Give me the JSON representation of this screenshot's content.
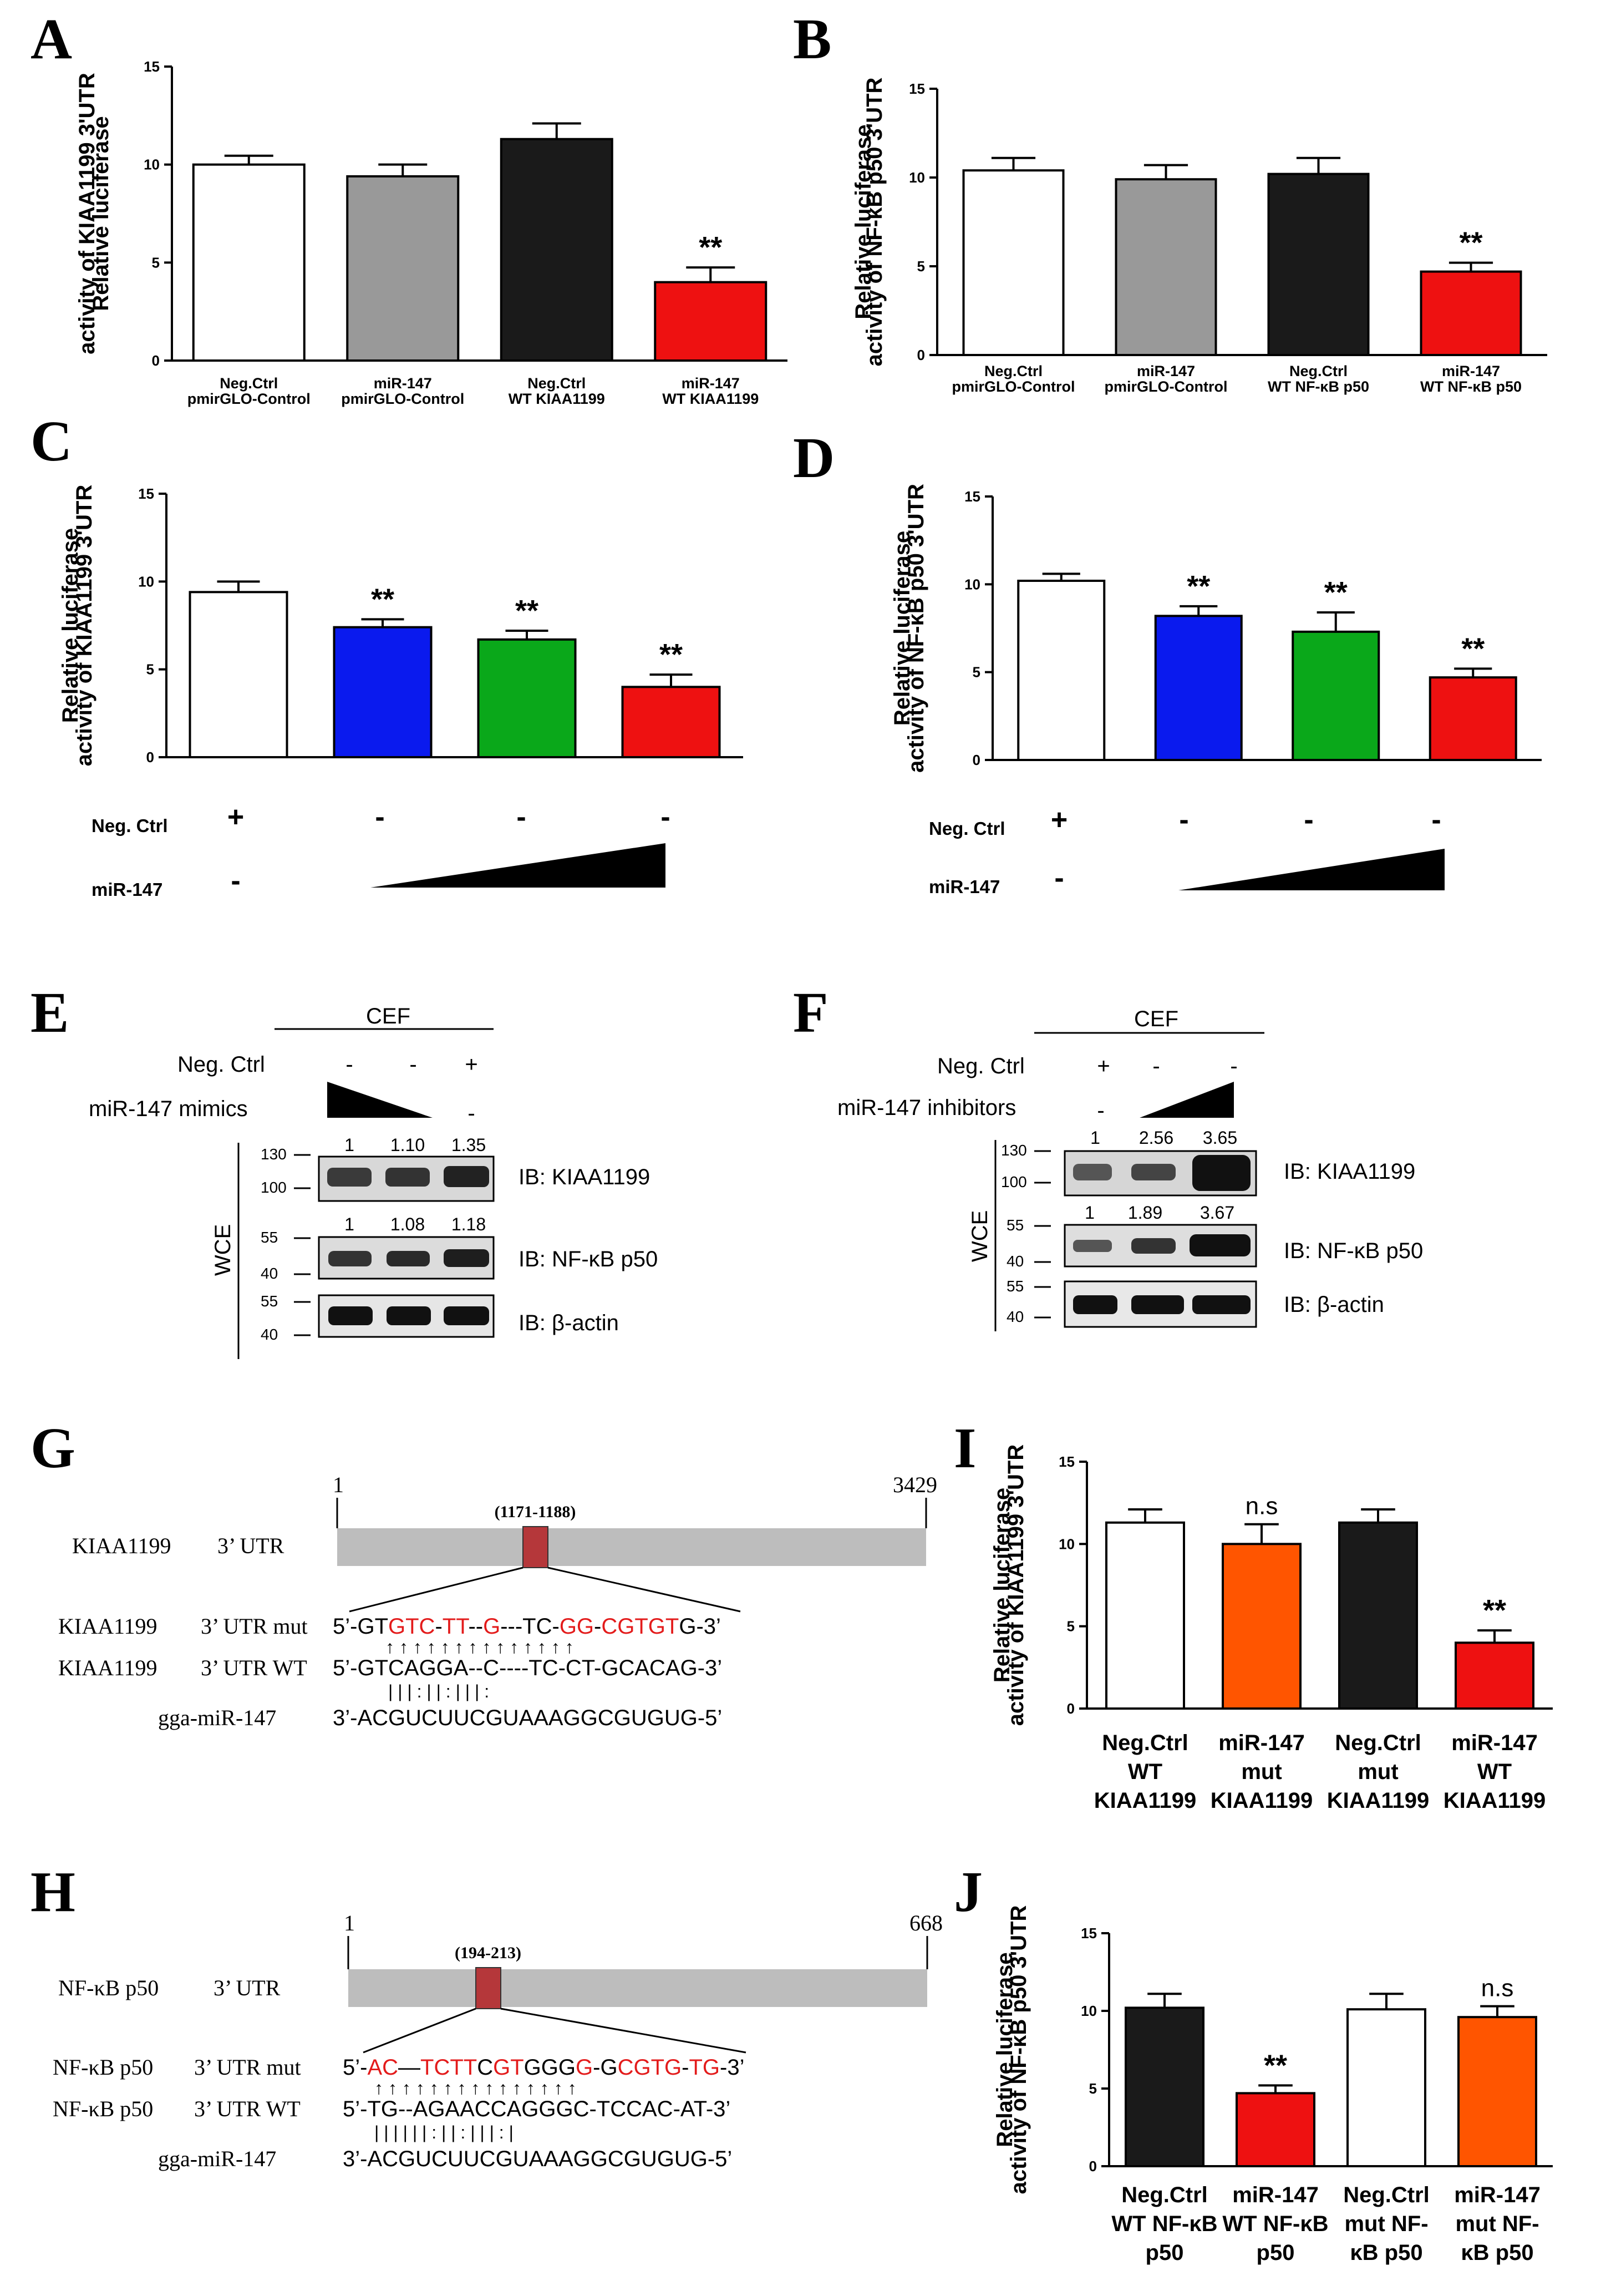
{
  "panel_letters": [
    "A",
    "B",
    "C",
    "D",
    "E",
    "F",
    "G",
    "H",
    "I",
    "J"
  ],
  "sig_label": "**",
  "ns_label": "n.s",
  "axis_ticks": [
    "0",
    "5",
    "10",
    "15"
  ],
  "chart_data": [
    {
      "id": "A",
      "type": "bar",
      "ylabel": [
        "Relative luciferase",
        "activity of KIAA1199  3'UTR"
      ],
      "ylim": [
        0,
        15
      ],
      "categories": [
        [
          "Neg.Ctrl",
          "pmirGLO-Control"
        ],
        [
          "miR-147",
          "pmirGLO-Control"
        ],
        [
          "Neg.Ctrl",
          "WT KIAA1199"
        ],
        [
          "miR-147",
          "WT KIAA1199"
        ]
      ],
      "values": [
        10.0,
        9.4,
        11.3,
        4.0
      ],
      "errors": [
        0.45,
        0.6,
        0.8,
        0.75
      ],
      "colors": [
        "#ffffff",
        "#999999",
        "#1a1a1a",
        "#ee1111"
      ],
      "significance": [
        "",
        "",
        "",
        "**"
      ]
    },
    {
      "id": "B",
      "type": "bar",
      "ylabel": [
        "Relative luciferase",
        "activity of NF-κB p50  3'UTR"
      ],
      "ylim": [
        0,
        15
      ],
      "categories": [
        [
          "Neg.Ctrl",
          "pmirGLO-Control"
        ],
        [
          "miR-147",
          "pmirGLO-Control"
        ],
        [
          "Neg.Ctrl",
          "WT NF-κB p50"
        ],
        [
          "miR-147",
          "WT NF-κB p50"
        ]
      ],
      "values": [
        10.4,
        9.9,
        10.2,
        4.7
      ],
      "errors": [
        0.7,
        0.8,
        0.9,
        0.5
      ],
      "colors": [
        "#ffffff",
        "#999999",
        "#1a1a1a",
        "#ee1111"
      ],
      "significance": [
        "",
        "",
        "",
        "**"
      ]
    },
    {
      "id": "C",
      "type": "bar",
      "ylabel": [
        "Relative luciferase",
        "activity of KIAA1199  3'UTR"
      ],
      "ylim": [
        0,
        15
      ],
      "categories": [
        [],
        [],
        [],
        []
      ],
      "values": [
        9.4,
        7.4,
        6.7,
        4.0
      ],
      "errors": [
        0.6,
        0.45,
        0.5,
        0.7
      ],
      "colors": [
        "#ffffff",
        "#0a1aee",
        "#0aa81a",
        "#ee1111"
      ],
      "significance": [
        "",
        "**",
        "**",
        "**"
      ],
      "conditions": {
        "neg_label": "Neg. Ctrl",
        "mir_label": "miR-147",
        "neg": [
          "+",
          "-",
          "-",
          "-"
        ],
        "mir_first": "-"
      }
    },
    {
      "id": "D",
      "type": "bar",
      "ylabel": [
        "Relative luciferase",
        "activity of NF-κB p50  3'UTR"
      ],
      "ylim": [
        0,
        15
      ],
      "categories": [
        [],
        [],
        [],
        []
      ],
      "values": [
        10.2,
        8.2,
        7.3,
        4.7
      ],
      "errors": [
        0.4,
        0.55,
        1.1,
        0.5
      ],
      "colors": [
        "#ffffff",
        "#0a1aee",
        "#0aa81a",
        "#ee1111"
      ],
      "significance": [
        "",
        "**",
        "**",
        "**"
      ],
      "conditions": {
        "neg_label": "Neg. Ctrl",
        "mir_label": "miR-147",
        "neg": [
          "+",
          "-",
          "-",
          "-"
        ],
        "mir_first": "-"
      }
    },
    {
      "id": "I",
      "type": "bar",
      "ylabel": [
        "Relative luciferase",
        "activity of KIAA1199  3'UTR"
      ],
      "ylim": [
        0,
        15
      ],
      "categories": [
        [
          "Neg.Ctrl",
          "WT",
          "KIAA1199"
        ],
        [
          "miR-147",
          "mut",
          "KIAA1199"
        ],
        [
          "Neg.Ctrl",
          "mut",
          "KIAA1199"
        ],
        [
          "miR-147",
          "WT",
          "KIAA1199"
        ]
      ],
      "values": [
        11.3,
        10.0,
        11.3,
        4.0
      ],
      "errors": [
        0.8,
        1.2,
        0.8,
        0.75
      ],
      "colors": [
        "#ffffff",
        "#ff5500",
        "#1a1a1a",
        "#ee1111"
      ],
      "significance": [
        "",
        "n.s",
        "",
        "**"
      ]
    },
    {
      "id": "J",
      "type": "bar",
      "ylabel": [
        "Relative luciferase",
        "activity of NF-κB p50  3'UTR"
      ],
      "ylim": [
        0,
        15
      ],
      "categories": [
        [
          "Neg.Ctrl",
          "WT NF-κB",
          "p50"
        ],
        [
          "miR-147",
          "WT NF-κB",
          "p50"
        ],
        [
          "Neg.Ctrl",
          "mut NF-",
          "κB p50"
        ],
        [
          "miR-147",
          "mut NF-",
          "κB p50"
        ]
      ],
      "values": [
        10.2,
        4.7,
        10.1,
        9.6
      ],
      "errors": [
        0.9,
        0.5,
        1.0,
        0.7
      ],
      "colors": [
        "#1a1a1a",
        "#ee1111",
        "#ffffff",
        "#ff5500"
      ],
      "significance": [
        "",
        "**",
        "",
        "n.s"
      ]
    }
  ],
  "panel_E": {
    "cell": "CEF",
    "neg_label": "Neg. Ctrl",
    "neg_signs": [
      "-",
      "-",
      "+"
    ],
    "treat_label": "miR-147 mimics",
    "treat_last_sign": "-",
    "lysate": "WCE",
    "blots": [
      {
        "label": "IB: KIAA1199",
        "quant": [
          "1",
          "1.10",
          "1.35"
        ],
        "markers": [
          "130",
          "100"
        ]
      },
      {
        "label": "IB: NF-κB p50",
        "quant": [
          "1",
          "1.08",
          "1.18"
        ],
        "markers": [
          "55",
          "40"
        ]
      },
      {
        "label": "IB: β-actin",
        "quant": [],
        "markers": [
          "55",
          "40"
        ]
      }
    ]
  },
  "panel_F": {
    "cell": "CEF",
    "neg_label": "Neg. Ctrl",
    "neg_signs": [
      "+",
      "-",
      "-"
    ],
    "treat_label": "miR-147 inhibitors",
    "treat_first_sign": "-",
    "lysate": "WCE",
    "blots": [
      {
        "label": "IB: KIAA1199",
        "quant": [
          "1",
          "2.56",
          "3.65"
        ],
        "markers": [
          "130",
          "100"
        ]
      },
      {
        "label": "IB: NF-κB p50",
        "quant": [
          "1",
          "1.89",
          "3.67"
        ],
        "markers": [
          "55",
          "40"
        ]
      },
      {
        "label": "IB: β-actin",
        "quant": [],
        "markers": [
          "55",
          "40"
        ]
      }
    ]
  },
  "panel_G": {
    "gene": "KIAA1199",
    "utr": "3’ UTR",
    "start": "1",
    "end": "3429",
    "site": "(1171-1188)",
    "mut_label": "3’ UTR mut",
    "wt_label": "3’ UTR WT",
    "mirna_label": "gga-miR-147",
    "mut_seq": [
      [
        "5’-GT",
        0
      ],
      [
        "GTC",
        1
      ],
      [
        "-",
        0
      ],
      [
        "TT",
        1
      ],
      [
        "--",
        0
      ],
      [
        "G",
        1
      ],
      [
        "---TC-",
        0
      ],
      [
        "GG",
        1
      ],
      [
        "-",
        0
      ],
      [
        "CGTGT",
        1
      ],
      [
        "G-3’",
        0
      ]
    ],
    "wt_seq": "5’-GTCAGGA--C----TC-CT-GCACAG-3’",
    "pairing": "|  |  |  :  |       |  :  | |  |  :",
    "mirna_seq": "3’-ACGUCUUCGUAAAGGCGUGUG-5’"
  },
  "panel_H": {
    "gene": "NF-κB p50",
    "utr": "3’ UTR",
    "start": "1",
    "end": "668",
    "site": "(194-213)",
    "mut_label": "3’ UTR mut",
    "wt_label": "3’ UTR WT",
    "mirna_label": "gga-miR-147",
    "mut_seq": [
      [
        "5’-",
        0
      ],
      [
        "AC",
        1
      ],
      [
        "—",
        0
      ],
      [
        "TCTT",
        1
      ],
      [
        "C",
        0
      ],
      [
        "G",
        1
      ],
      [
        "T",
        1
      ],
      [
        "GGG",
        0
      ],
      [
        "G",
        1
      ],
      [
        "-G",
        0
      ],
      [
        "CGTG",
        1
      ],
      [
        "-",
        0
      ],
      [
        "TG",
        1
      ],
      [
        "-3’",
        0
      ]
    ],
    "wt_seq": "5’-TG--AGAACCAGGGC-TCCAC-AT-3’",
    "pairing": "|  |    |  |  |  |  :  |  |  :  |  |  |  :  |",
    "mirna_seq": "3’-ACGUCUUCGUAAAGGCGUGUG-5’"
  }
}
